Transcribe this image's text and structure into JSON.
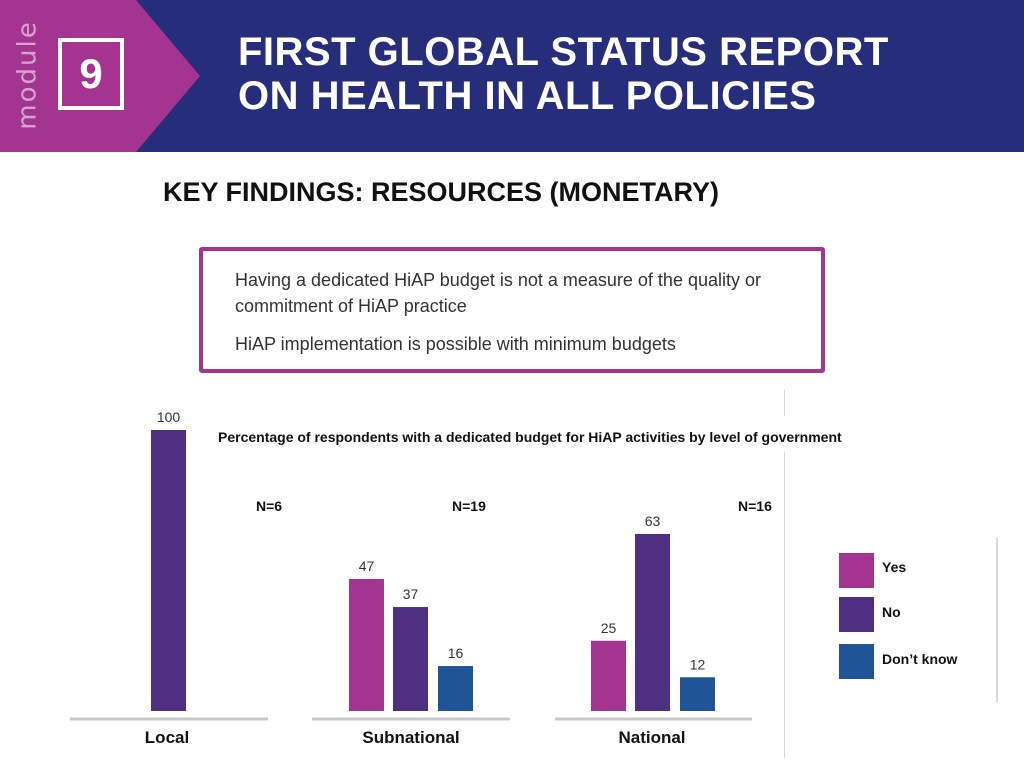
{
  "header": {
    "module_word": "module",
    "module_number": "9",
    "title_line1": "FIRST GLOBAL STATUS REPORT",
    "title_line2": "ON HEALTH IN ALL POLICIES"
  },
  "subtitle": "KEY FINDINGS: RESOURCES (MONETARY)",
  "callout": {
    "line1": "Having a dedicated HiAP budget is not a measure of the quality or commitment of HiAP practice",
    "line2": "HiAP implementation is possible with minimum budgets"
  },
  "colors": {
    "yes": "#a3348f",
    "no": "#4e2f82",
    "dont_know": "#1f5497",
    "header": "#262e7c"
  },
  "chart_data": {
    "type": "bar",
    "title": "Percentage of respondents with a dedicated budget for HiAP activities by level of government",
    "categories": [
      "Local",
      "Subnational",
      "National"
    ],
    "sample_sizes": [
      "N=6",
      "N=19",
      "N=16"
    ],
    "series": [
      {
        "name": "Yes",
        "values": [
          null,
          47,
          25
        ]
      },
      {
        "name": "No",
        "values": [
          100,
          37,
          63
        ]
      },
      {
        "name": "Don’t know",
        "values": [
          null,
          16,
          12
        ]
      }
    ],
    "ylim": [
      0,
      100
    ],
    "legend": "right"
  }
}
